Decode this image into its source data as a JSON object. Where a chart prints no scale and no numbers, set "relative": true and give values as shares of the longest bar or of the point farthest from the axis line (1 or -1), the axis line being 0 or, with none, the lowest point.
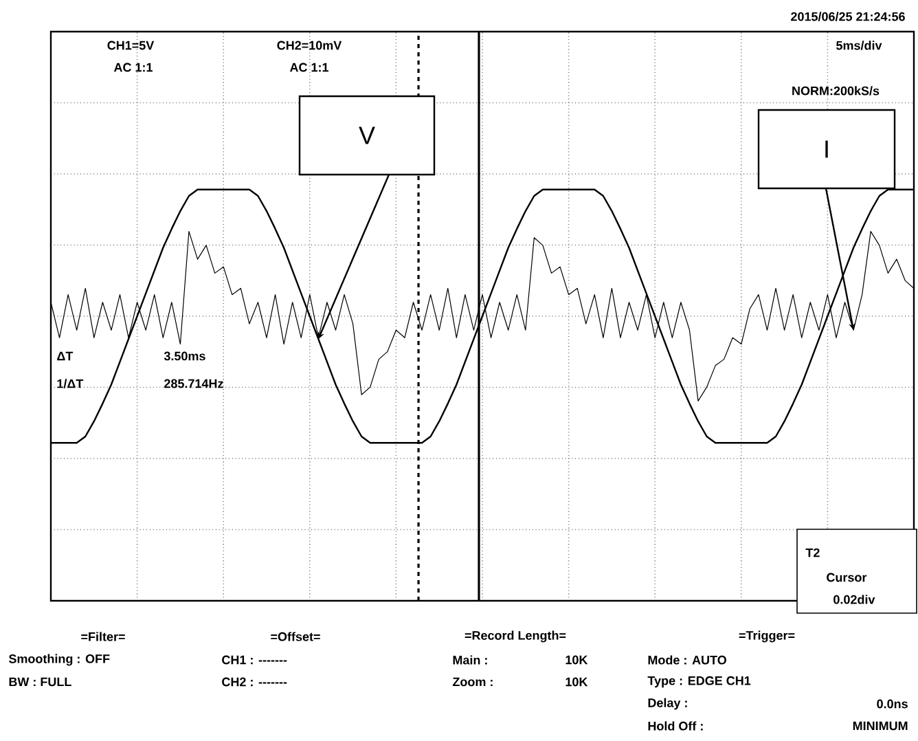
{
  "chart_data": {
    "type": "line",
    "relative": true,
    "categories": [
      null,
      null,
      null,
      null,
      null,
      null,
      null,
      null,
      null,
      null,
      null,
      null,
      null,
      null,
      null,
      null,
      null,
      null,
      null,
      null,
      null,
      null,
      null,
      null,
      null,
      null,
      null,
      null,
      null,
      null,
      null,
      null,
      null,
      null,
      null,
      null,
      null,
      null,
      null,
      null,
      null,
      null,
      null,
      null,
      null,
      null,
      null,
      null,
      null,
      null,
      null,
      null,
      null,
      null,
      null,
      null,
      null,
      null,
      null,
      null,
      null,
      null,
      null,
      null,
      null,
      null,
      null,
      null,
      null,
      null,
      null,
      null,
      null,
      null,
      null,
      null,
      null,
      null,
      null,
      null,
      null,
      null,
      null,
      null,
      null,
      null,
      null,
      null,
      null,
      null,
      null,
      null,
      null,
      null,
      null,
      null,
      null,
      null,
      null,
      null,
      null
    ],
    "series": [
      {
        "name": "V",
        "color": "#000000",
        "values": [
          -1,
          -1,
          -1,
          -1,
          -0.95,
          -0.83,
          -0.69,
          -0.54,
          -0.36,
          -0.18,
          0,
          0.18,
          0.36,
          0.54,
          0.69,
          0.83,
          0.95,
          1,
          1,
          1,
          1,
          1,
          1,
          1,
          0.95,
          0.83,
          0.69,
          0.54,
          0.36,
          0.18,
          0,
          -0.18,
          -0.36,
          -0.54,
          -0.69,
          -0.83,
          -0.95,
          -1,
          -1,
          -1,
          -1,
          -1,
          -1,
          -1,
          -0.95,
          -0.83,
          -0.69,
          -0.54,
          -0.36,
          -0.18,
          0,
          0.18,
          0.36,
          0.54,
          0.69,
          0.83,
          0.95,
          1,
          1,
          1,
          1,
          1,
          1,
          1,
          0.95,
          0.83,
          0.69,
          0.54,
          0.36,
          0.18,
          0,
          -0.18,
          -0.36,
          -0.54,
          -0.69,
          -0.83,
          -0.95,
          -1,
          -1,
          -1,
          -1,
          -1,
          -1,
          -1,
          -0.95,
          -0.83,
          -0.69,
          -0.54,
          -0.36,
          -0.18,
          0,
          0.18,
          0.36,
          0.54,
          0.69,
          0.83,
          0.95,
          1,
          1,
          1,
          1
        ]
      },
      {
        "name": "I",
        "color": "#000000",
        "values": [
          0.11,
          -0.17,
          0.17,
          -0.11,
          0.22,
          -0.17,
          0.11,
          -0.11,
          0.17,
          -0.17,
          0.11,
          -0.11,
          0.17,
          -0.17,
          0.11,
          -0.22,
          0.67,
          0.45,
          0.56,
          0.34,
          0.39,
          0.17,
          0.22,
          -0.06,
          0.11,
          -0.17,
          0.17,
          -0.22,
          0.11,
          -0.17,
          0.17,
          -0.17,
          0.11,
          -0.11,
          0.17,
          -0.06,
          -0.62,
          -0.56,
          -0.34,
          -0.28,
          -0.11,
          -0.17,
          0.11,
          -0.11,
          0.17,
          -0.11,
          0.22,
          -0.17,
          0.17,
          -0.11,
          0.17,
          -0.17,
          0.11,
          -0.11,
          0.17,
          -0.11,
          0.62,
          0.56,
          0.34,
          0.39,
          0.17,
          0.22,
          -0.06,
          0.17,
          -0.17,
          0.22,
          -0.17,
          0.11,
          -0.11,
          0.17,
          -0.17,
          0.11,
          -0.17,
          0.11,
          -0.11,
          -0.67,
          -0.56,
          -0.39,
          -0.34,
          -0.17,
          -0.22,
          0.06,
          0.17,
          -0.11,
          0.22,
          -0.11,
          0.17,
          -0.17,
          0.11,
          -0.11,
          0.17,
          -0.17,
          0.11,
          -0.11,
          0.17,
          0.67,
          0.56,
          0.34,
          0.45,
          0.28,
          0.22
        ]
      }
    ],
    "grid": true,
    "annotations": [
      "2015/06/25 21:24:56",
      "CH1=5V",
      "AC 1:1",
      "CH2=10mV",
      "AC 1:1",
      "5ms/div",
      "NORM:200kS/s",
      "ΔT",
      "3.50ms",
      "1/ΔT",
      "285.714Hz",
      "T2",
      "Cursor",
      "0.02div",
      "=Filter=",
      "Smoothing : OFF",
      "BW : FULL",
      "=Offset=",
      "CH1 : -------",
      "CH2 : -------",
      "=Record Length=",
      "Main :",
      "10K",
      "Zoom :",
      "10K",
      "=Trigger=",
      "Mode : AUTO",
      "Type : EDGE CH1",
      "Delay :",
      "0.0ns",
      "Hold Off :",
      "MINIMUM"
    ]
  }
}
